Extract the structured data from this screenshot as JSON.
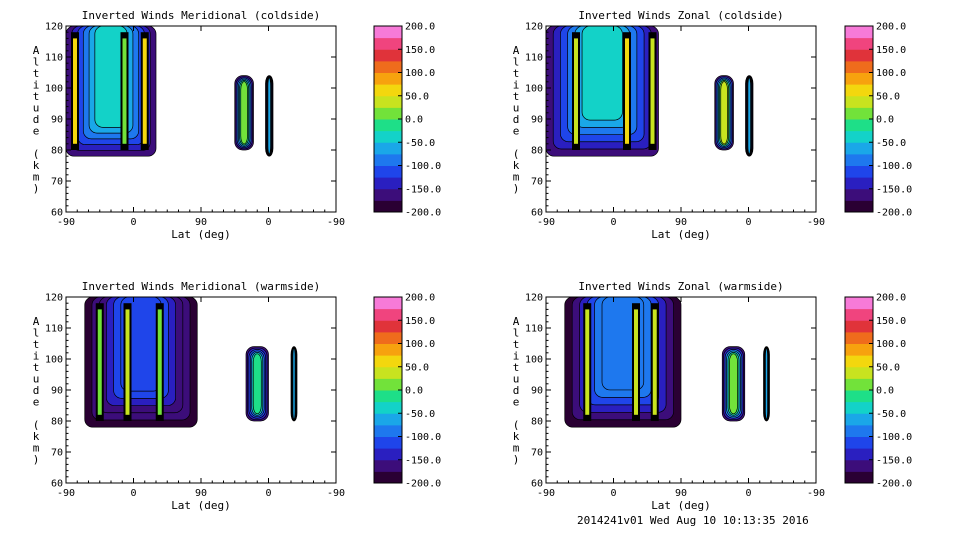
{
  "footer": "2014241v01 Wed Aug 10 10:13:35 2016",
  "colors": {
    "colormap": [
      "#2a0033",
      "#3c0d7a",
      "#2a1fc0",
      "#1f45ea",
      "#1e78ee",
      "#1aa7e8",
      "#13d2c8",
      "#1edf88",
      "#72e23a",
      "#c8e31f",
      "#f3d70e",
      "#f7a20e",
      "#ef6c1c",
      "#e0333a",
      "#f0447e",
      "#f77ad8"
    ]
  },
  "chart_data": [
    {
      "type": "heatmap",
      "title": "Inverted Winds Meridional (coldside)",
      "xlabel": "Lat (deg)",
      "ylabel": "Altitude (km)",
      "x_ticks": [
        "-90",
        "0",
        "90",
        "0",
        "-90"
      ],
      "y_ticks": [
        "60",
        "70",
        "80",
        "90",
        "100",
        "110",
        "120"
      ],
      "ylim": [
        60,
        120
      ],
      "colorbar": {
        "ticks": [
          "200.0",
          "150.0",
          "100.0",
          "50.0",
          "0.0",
          "-50.0",
          "-100.0",
          "-150.0",
          "-200.0"
        ],
        "range": [
          -200,
          200
        ]
      },
      "regions": [
        {
          "lat": [
            -90,
            30
          ],
          "alt": [
            78,
            120
          ],
          "value": -40,
          "top_open": true
        },
        {
          "lat": [
            135,
            160
          ],
          "alt": [
            80,
            104
          ],
          "value": 10,
          "top_open": false
        },
        {
          "lat": [
            176,
            186
          ],
          "alt": [
            78,
            104
          ],
          "value": -60,
          "top_open": false
        }
      ],
      "streaks": [
        {
          "lat": -78,
          "value": 60
        },
        {
          "lat": -12,
          "value": 20
        },
        {
          "lat": 15,
          "value": 60
        }
      ]
    },
    {
      "type": "heatmap",
      "title": "Inverted Winds Zonal (coldside)",
      "xlabel": "Lat (deg)",
      "ylabel": "Altitude (km)",
      "x_ticks": [
        "-90",
        "0",
        "90",
        "0",
        "-90"
      ],
      "y_ticks": [
        "60",
        "70",
        "80",
        "90",
        "100",
        "110",
        "120"
      ],
      "ylim": [
        60,
        120
      ],
      "colorbar": {
        "ticks": [
          "200.0",
          "150.0",
          "100.0",
          "50.0",
          "0.0",
          "-50.0",
          "-100.0",
          "-150.0",
          "-200.0"
        ],
        "range": [
          -200,
          200
        ]
      },
      "regions": [
        {
          "lat": [
            -90,
            60
          ],
          "alt": [
            78,
            120
          ],
          "value": -30,
          "top_open": true
        },
        {
          "lat": [
            135,
            160
          ],
          "alt": [
            80,
            104
          ],
          "value": 40,
          "top_open": false
        },
        {
          "lat": [
            176,
            186
          ],
          "alt": [
            78,
            104
          ],
          "value": -70,
          "top_open": false
        }
      ],
      "streaks": [
        {
          "lat": -50,
          "value": 40
        },
        {
          "lat": 18,
          "value": 50
        },
        {
          "lat": 52,
          "value": 40
        }
      ]
    },
    {
      "type": "heatmap",
      "title": "Inverted Winds Meridional (warmside)",
      "xlabel": "Lat (deg)",
      "ylabel": "Altitude (km)",
      "x_ticks": [
        "-90",
        "0",
        "90",
        "0",
        "-90"
      ],
      "y_ticks": [
        "60",
        "70",
        "80",
        "90",
        "100",
        "110",
        "120"
      ],
      "ylim": [
        60,
        120
      ],
      "colorbar": {
        "ticks": [
          "200.0",
          "150.0",
          "100.0",
          "50.0",
          "0.0",
          "-50.0",
          "-100.0",
          "-150.0",
          "-200.0"
        ],
        "range": [
          -200,
          200
        ]
      },
      "regions": [
        {
          "lat": [
            -65,
            85
          ],
          "alt": [
            78,
            120
          ],
          "value": -110,
          "top_open": true
        },
        {
          "lat": [
            150,
            180
          ],
          "alt": [
            80,
            104
          ],
          "value": -20,
          "top_open": false
        },
        {
          "lat": [
            210,
            218
          ],
          "alt": [
            80,
            104
          ],
          "value": -60,
          "top_open": false
        }
      ],
      "streaks": [
        {
          "lat": -45,
          "value": 20
        },
        {
          "lat": -8,
          "value": 40
        },
        {
          "lat": 35,
          "value": 20
        }
      ]
    },
    {
      "type": "heatmap",
      "title": "Inverted Winds Zonal (warmside)",
      "xlabel": "Lat (deg)",
      "ylabel": "Altitude (km)",
      "x_ticks": [
        "-90",
        "0",
        "90",
        "0",
        "-90"
      ],
      "y_ticks": [
        "60",
        "70",
        "80",
        "90",
        "100",
        "110",
        "120"
      ],
      "ylim": [
        60,
        120
      ],
      "colorbar": {
        "ticks": [
          "200.0",
          "150.0",
          "100.0",
          "50.0",
          "0.0",
          "-50.0",
          "-100.0",
          "-150.0",
          "-200.0"
        ],
        "range": [
          -200,
          200
        ]
      },
      "regions": [
        {
          "lat": [
            -65,
            90
          ],
          "alt": [
            78,
            120
          ],
          "value": -80,
          "top_open": true
        },
        {
          "lat": [
            145,
            175
          ],
          "alt": [
            80,
            104
          ],
          "value": 20,
          "top_open": false
        },
        {
          "lat": [
            200,
            208
          ],
          "alt": [
            80,
            104
          ],
          "value": -70,
          "top_open": false
        }
      ],
      "streaks": [
        {
          "lat": -35,
          "value": 40
        },
        {
          "lat": 30,
          "value": 40
        },
        {
          "lat": 55,
          "value": 40
        }
      ]
    }
  ]
}
